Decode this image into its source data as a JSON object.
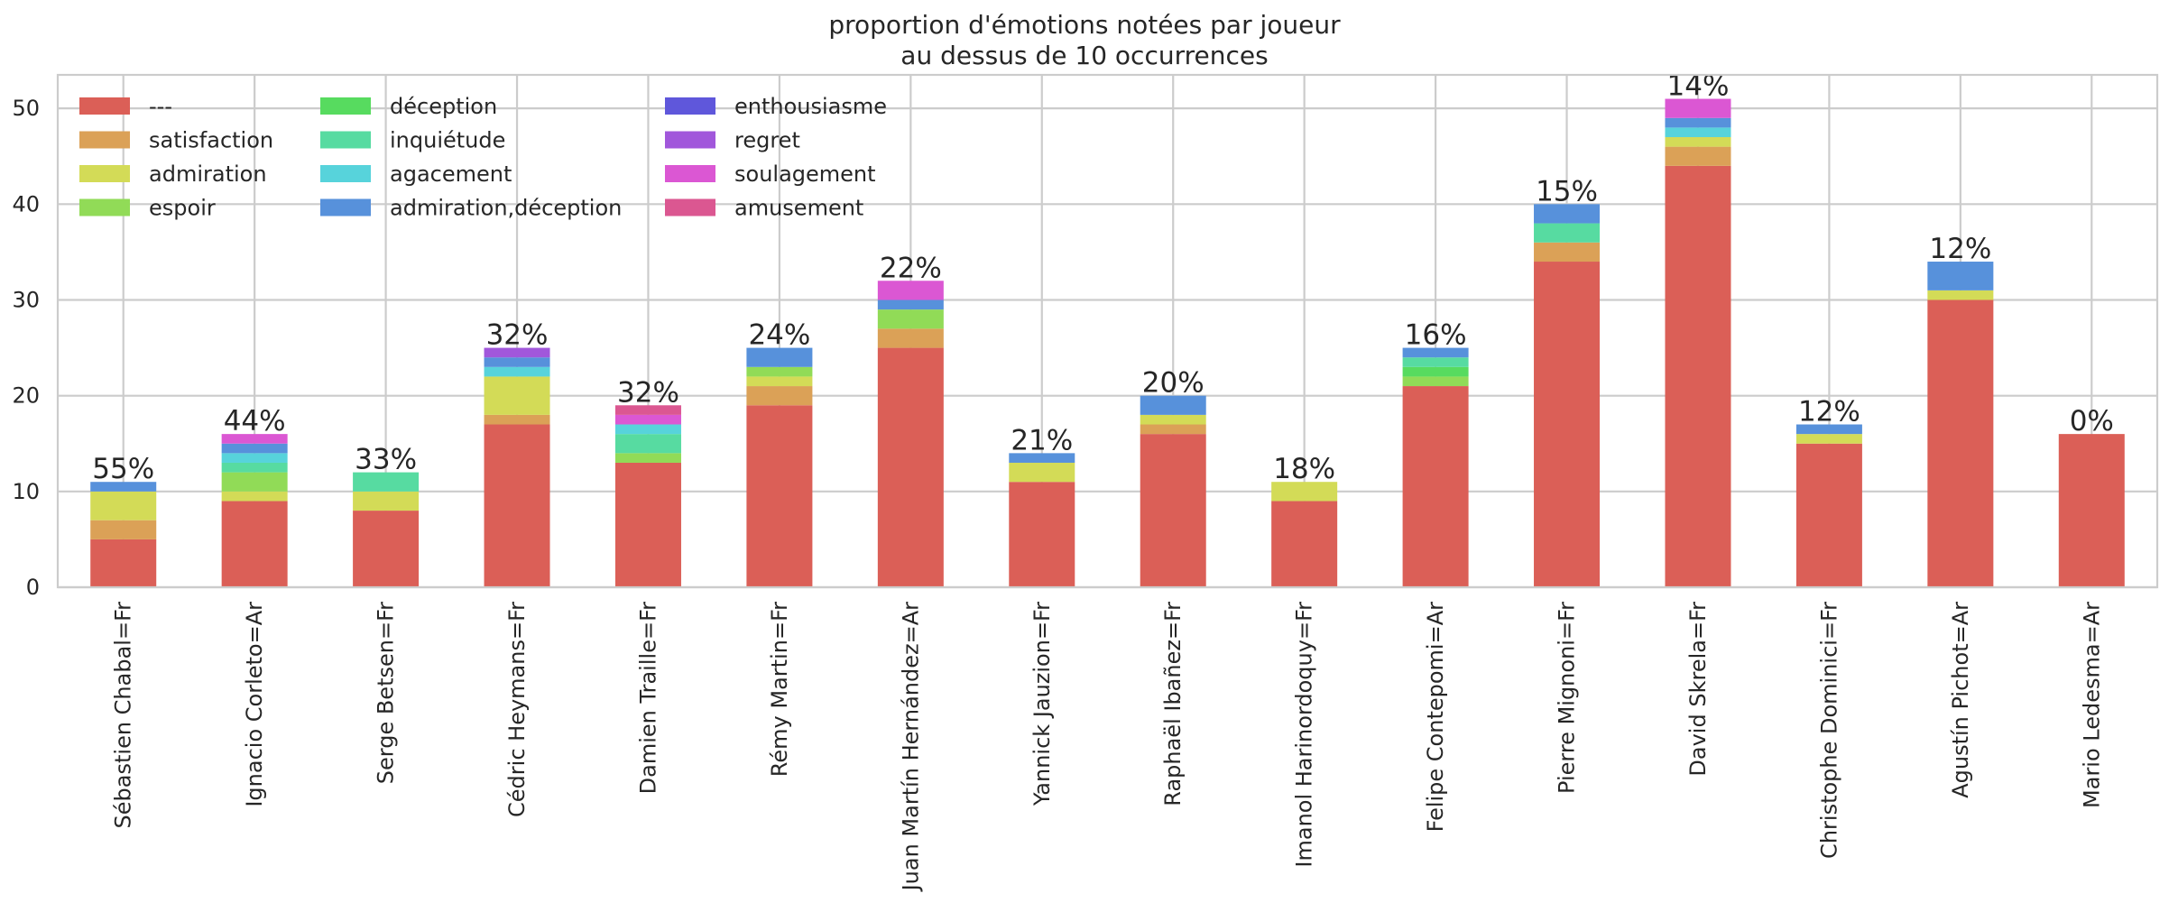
{
  "chart_data": {
    "type": "bar",
    "stacked": true,
    "title": "proportion d'émotions notées par joueur\nau dessus de 10 occurrences",
    "xlabel": "",
    "ylabel": "",
    "ylim": [
      0,
      53.5
    ],
    "yticks": [
      0,
      10,
      20,
      30,
      40,
      50
    ],
    "grid": true,
    "legend_position": "top-left",
    "legend_columns": 3,
    "categories": [
      "Sébastien Chabal=Fr",
      "Ignacio Corleto=Ar",
      "Serge Betsen=Fr",
      "Cédric Heymans=Fr",
      "Damien Traille=Fr",
      "Rémy Martin=Fr",
      "Juan Martín Hernández=Ar",
      "Yannick Jauzion=Fr",
      "Raphaël Ibañez=Fr",
      "Imanol Harinordoquy=Fr",
      "Felipe Contepomi=Ar",
      "Pierre Mignoni=Fr",
      "David Skrela=Fr",
      "Christophe Dominici=Fr",
      "Agustín Pichot=Ar",
      "Mario Ledesma=Ar"
    ],
    "bar_labels": [
      "55%",
      "44%",
      "33%",
      "32%",
      "32%",
      "24%",
      "22%",
      "21%",
      "20%",
      "18%",
      "16%",
      "15%",
      "14%",
      "12%",
      "12%",
      "0%"
    ],
    "series": [
      {
        "name": "---",
        "color": "#db5f57",
        "values": [
          5,
          9,
          8,
          17,
          13,
          19,
          25,
          11,
          16,
          9,
          21,
          34,
          44,
          15,
          30,
          16
        ]
      },
      {
        "name": "satisfaction",
        "color": "#dba157",
        "values": [
          2,
          0,
          0,
          1,
          0,
          2,
          2,
          0,
          1,
          0,
          0,
          2,
          2,
          0,
          0,
          0
        ]
      },
      {
        "name": "admiration",
        "color": "#d3db57",
        "values": [
          3,
          1,
          2,
          4,
          0,
          1,
          0,
          2,
          1,
          2,
          0,
          0,
          1,
          1,
          1,
          0
        ]
      },
      {
        "name": "espoir",
        "color": "#91db57",
        "values": [
          0,
          2,
          0,
          0,
          1,
          1,
          2,
          0,
          0,
          0,
          1,
          0,
          0,
          0,
          0,
          0
        ]
      },
      {
        "name": "déception",
        "color": "#57db5f",
        "values": [
          0,
          0,
          0,
          0,
          0,
          0,
          0,
          0,
          0,
          0,
          1,
          0,
          0,
          0,
          0,
          0
        ]
      },
      {
        "name": "inquiétude",
        "color": "#57dba1",
        "values": [
          0,
          1,
          2,
          0,
          2,
          0,
          0,
          0,
          0,
          0,
          1,
          2,
          0,
          0,
          0,
          0
        ]
      },
      {
        "name": "agacement",
        "color": "#57d3db",
        "values": [
          0,
          1,
          0,
          1,
          1,
          0,
          0,
          0,
          0,
          0,
          0,
          0,
          1,
          0,
          0,
          0
        ]
      },
      {
        "name": "admiration,déception",
        "color": "#5791db",
        "values": [
          1,
          1,
          0,
          1,
          0,
          2,
          1,
          1,
          2,
          0,
          1,
          2,
          1,
          1,
          3,
          0
        ]
      },
      {
        "name": "enthousiasme",
        "color": "#5f57db",
        "values": [
          0,
          0,
          0,
          0,
          0,
          0,
          0,
          0,
          0,
          0,
          0,
          0,
          0,
          0,
          0,
          0
        ]
      },
      {
        "name": "regret",
        "color": "#a157db",
        "values": [
          0,
          0,
          0,
          1,
          0,
          0,
          0,
          0,
          0,
          0,
          0,
          0,
          0,
          0,
          0,
          0
        ]
      },
      {
        "name": "soulagement",
        "color": "#db57d3",
        "values": [
          0,
          1,
          0,
          0,
          1,
          0,
          2,
          0,
          0,
          0,
          0,
          0,
          2,
          0,
          0,
          0
        ]
      },
      {
        "name": "amusement",
        "color": "#db5791",
        "values": [
          0,
          0,
          0,
          0,
          1,
          0,
          0,
          0,
          0,
          0,
          0,
          0,
          0,
          0,
          0,
          0
        ]
      }
    ]
  }
}
